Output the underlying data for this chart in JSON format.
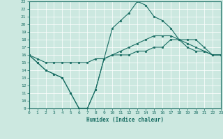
{
  "xlabel": "Humidex (Indice chaleur)",
  "ylabel": "",
  "xlim": [
    0,
    23
  ],
  "ylim": [
    9,
    23
  ],
  "xticks": [
    0,
    1,
    2,
    3,
    4,
    5,
    6,
    7,
    8,
    9,
    10,
    11,
    12,
    13,
    14,
    15,
    16,
    17,
    18,
    19,
    20,
    21,
    22,
    23
  ],
  "yticks": [
    9,
    10,
    11,
    12,
    13,
    14,
    15,
    16,
    17,
    18,
    19,
    20,
    21,
    22,
    23
  ],
  "bg_color": "#cce8e0",
  "line_color": "#1a6e64",
  "grid_color": "#ffffff",
  "line_min_x": [
    0,
    1,
    2,
    3,
    4,
    5,
    6,
    7,
    8,
    9,
    10,
    11,
    12,
    13,
    14,
    15,
    16,
    17,
    18,
    19,
    20,
    21,
    22,
    23
  ],
  "line_min_y": [
    16,
    15,
    14,
    13.5,
    13,
    11,
    9,
    9,
    11.5,
    15.5,
    16,
    16,
    16,
    16.5,
    16.5,
    17,
    17,
    18,
    18,
    18,
    18,
    17,
    16,
    16
  ],
  "line_avg_x": [
    0,
    1,
    2,
    3,
    4,
    5,
    6,
    7,
    8,
    9,
    10,
    11,
    12,
    13,
    14,
    15,
    16,
    17,
    18,
    19,
    20,
    21,
    22,
    23
  ],
  "line_avg_y": [
    16,
    15.5,
    15,
    15,
    15,
    15,
    15,
    15,
    15.5,
    15.5,
    16,
    16.5,
    17,
    17.5,
    18,
    18.5,
    18.5,
    18.5,
    18,
    17.5,
    17,
    16.5,
    16,
    16
  ],
  "line_max_x": [
    0,
    1,
    2,
    3,
    4,
    5,
    6,
    7,
    8,
    9,
    10,
    11,
    12,
    13,
    14,
    15,
    16,
    17,
    18,
    19,
    20,
    21,
    22,
    23
  ],
  "line_max_y": [
    16,
    15,
    14,
    13.5,
    13,
    11,
    9,
    9,
    11.5,
    15.5,
    19.5,
    20.5,
    21.5,
    23,
    22.5,
    21,
    20.5,
    19.5,
    18,
    17,
    16.5,
    16.5,
    16,
    16
  ]
}
